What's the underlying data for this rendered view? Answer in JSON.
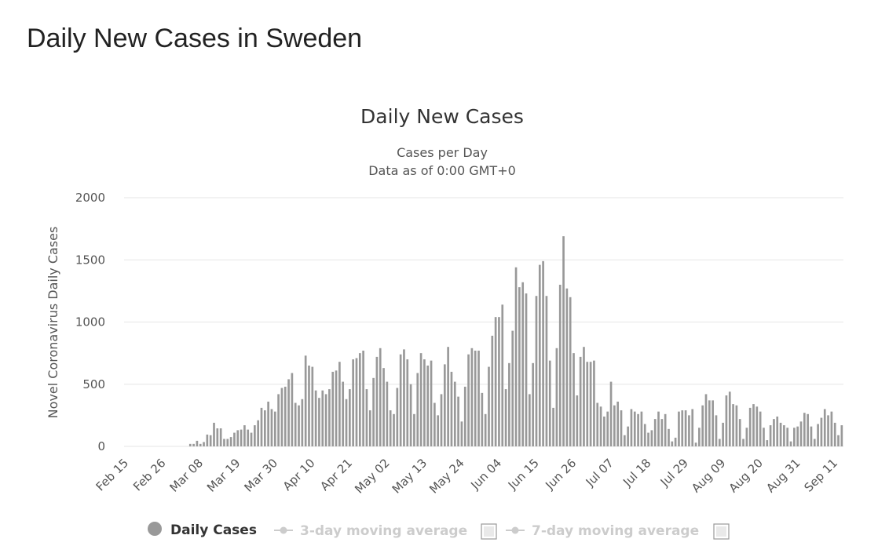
{
  "page": {
    "title": "Daily New Cases in Sweden"
  },
  "chart_data": {
    "type": "bar",
    "title": "Daily New Cases",
    "subtitle": "Cases per Day",
    "subtitle2": "Data as of 0:00 GMT+0",
    "ylabel": "Novel Coronavirus Daily Cases",
    "xlabel": "",
    "ylim": [
      0,
      2000
    ],
    "yticks": [
      0,
      500,
      1000,
      1500,
      2000
    ],
    "grid": true,
    "start_date": "Feb 15",
    "xtick_labels": [
      "Feb 15",
      "Feb 26",
      "Mar 08",
      "Mar 19",
      "Mar 30",
      "Apr 10",
      "Apr 21",
      "May 02",
      "May 13",
      "May 24",
      "Jun 04",
      "Jun 15",
      "Jun 26",
      "Jul 07",
      "Jul 18",
      "Jul 29",
      "Aug 09",
      "Aug 20",
      "Aug 31",
      "Sep 11"
    ],
    "xtick_interval_days": 11,
    "series": [
      {
        "name": "Daily Cases",
        "color": "#999999",
        "values": [
          0,
          0,
          0,
          0,
          0,
          0,
          0,
          0,
          0,
          0,
          0,
          0,
          0,
          0,
          0,
          0,
          0,
          0,
          0,
          20,
          20,
          45,
          20,
          35,
          95,
          90,
          190,
          145,
          145,
          60,
          60,
          75,
          110,
          130,
          135,
          170,
          135,
          110,
          170,
          210,
          310,
          290,
          360,
          300,
          280,
          420,
          470,
          480,
          540,
          590,
          350,
          330,
          380,
          730,
          650,
          640,
          450,
          390,
          450,
          420,
          460,
          600,
          610,
          680,
          520,
          380,
          460,
          700,
          710,
          750,
          770,
          460,
          290,
          550,
          720,
          790,
          630,
          520,
          290,
          260,
          470,
          740,
          780,
          700,
          500,
          260,
          590,
          750,
          700,
          650,
          690,
          350,
          250,
          420,
          660,
          800,
          600,
          520,
          400,
          200,
          480,
          740,
          790,
          770,
          770,
          430,
          260,
          640,
          890,
          1040,
          1040,
          1140,
          460,
          670,
          930,
          1440,
          1280,
          1320,
          1230,
          420,
          670,
          1210,
          1460,
          1490,
          1210,
          690,
          310,
          790,
          1300,
          1690,
          1270,
          1200,
          750,
          410,
          720,
          800,
          680,
          680,
          690,
          350,
          320,
          240,
          280,
          520,
          330,
          360,
          290,
          90,
          160,
          300,
          280,
          260,
          280,
          180,
          110,
          130,
          220,
          280,
          220,
          260,
          140,
          40,
          70,
          280,
          290,
          290,
          250,
          300,
          30,
          150,
          330,
          420,
          370,
          370,
          250,
          60,
          190,
          410,
          440,
          340,
          330,
          220,
          60,
          150,
          310,
          340,
          320,
          280,
          150,
          50,
          170,
          220,
          240,
          190,
          170,
          150,
          40,
          150,
          160,
          200,
          270,
          260,
          160,
          60,
          180,
          230,
          300,
          250,
          280,
          190,
          90,
          170
        ]
      }
    ],
    "legend": [
      {
        "label": "Daily Cases",
        "active": true
      },
      {
        "label": "3-day moving average",
        "active": false
      },
      {
        "label": "7-day moving average",
        "active": false
      }
    ]
  }
}
